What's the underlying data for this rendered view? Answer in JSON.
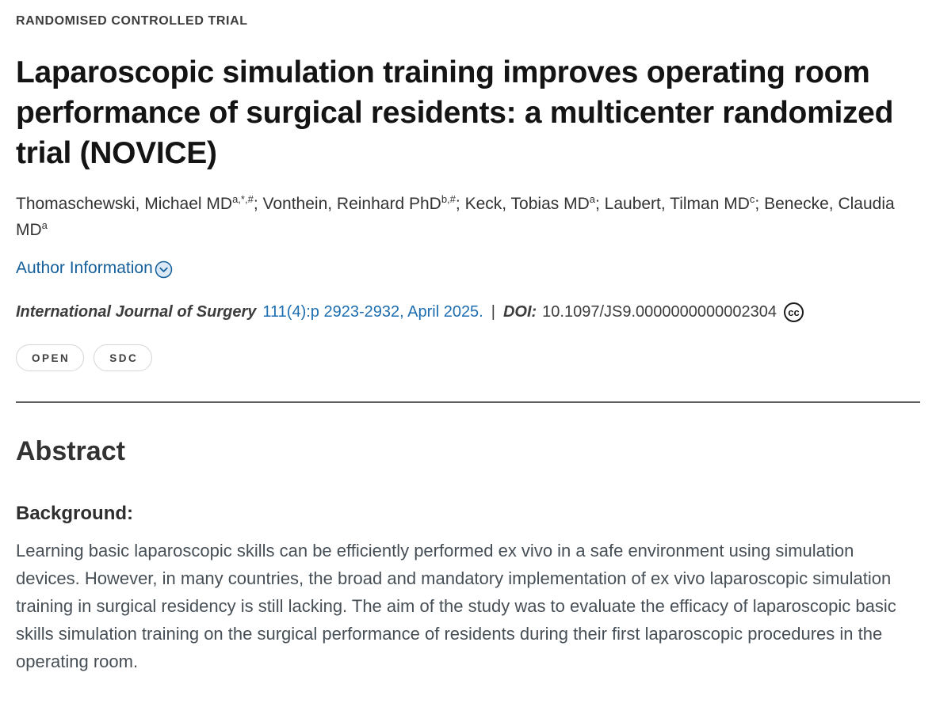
{
  "article": {
    "eyebrow": "RANDOMISED CONTROLLED TRIAL",
    "title": "Laparoscopic simulation training improves operating room performance of surgical residents: a multicenter randomized trial (NOVICE)",
    "authors": [
      {
        "name": "Thomaschewski, Michael MD",
        "sup": "a,*,#"
      },
      {
        "name": "Vonthein, Reinhard PhD",
        "sup": "b,#"
      },
      {
        "name": "Keck, Tobias MD",
        "sup": "a"
      },
      {
        "name": "Laubert, Tilman MD",
        "sup": "c"
      },
      {
        "name": "Benecke, Claudia MD",
        "sup": "a"
      }
    ],
    "author_separator": "; ",
    "author_info_label": "Author Information",
    "citation": {
      "journal": "International Journal of Surgery",
      "issue_pages_date": "111(4):p 2923-2932, April 2025.",
      "separator": "|",
      "doi_label": "DOI:",
      "doi_value": "10.1097/JS9.0000000000002304",
      "cc_icon_text": "cc"
    },
    "badges": [
      "OPEN",
      "SDC"
    ],
    "abstract": {
      "heading": "Abstract",
      "sections": [
        {
          "label": "Background:",
          "text": "Learning basic laparoscopic skills can be efficiently performed ex vivo in a safe environment using simulation devices. However, in many countries, the broad and mandatory implementation of ex vivo laparoscopic simulation training in surgical residency is still lacking. The aim of the study was to evaluate the efficacy of laparoscopic basic skills simulation training on the surgical performance of residents during their first laparoscopic procedures in the operating room."
        }
      ]
    }
  },
  "colors": {
    "author_info_link_blue": "#15609b",
    "citation_link_blue": "#1d6eb0",
    "chevron_icon_fill": "#dbe9f6",
    "title_black": "#141414",
    "body_text_gray": "#474f56",
    "divider_gray": "#5f5f5f",
    "badge_border_gray": "#d5d5d5"
  }
}
